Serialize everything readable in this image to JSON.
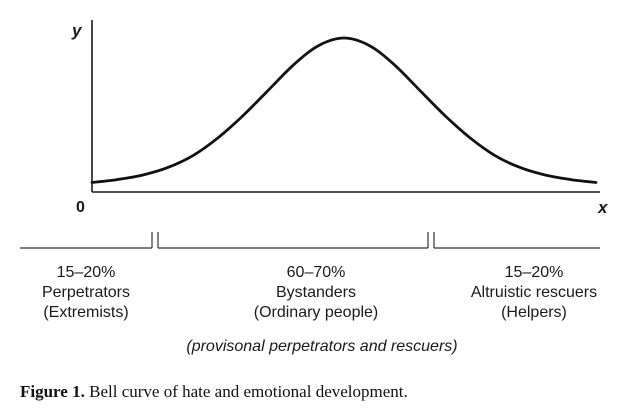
{
  "chart_data": {
    "type": "line",
    "xlabel": "x",
    "ylabel": "y",
    "origin_label": "0",
    "series": [
      {
        "x": [
          0,
          0.05,
          0.1,
          0.15,
          0.2,
          0.25,
          0.3,
          0.35,
          0.4,
          0.45,
          0.5,
          0.55,
          0.6,
          0.65,
          0.7,
          0.75,
          0.8,
          0.85,
          0.9,
          0.95,
          1.0
        ],
        "values": [
          0.03,
          0.05,
          0.08,
          0.13,
          0.21,
          0.33,
          0.48,
          0.65,
          0.82,
          0.95,
          1.0,
          0.95,
          0.82,
          0.65,
          0.48,
          0.33,
          0.21,
          0.13,
          0.08,
          0.05,
          0.03
        ]
      }
    ],
    "grid": false,
    "legend": "none",
    "segments": [
      {
        "percent": "15–20%",
        "role": "Perpetrators",
        "desc": "(Extremists)"
      },
      {
        "percent": "60–70%",
        "role": "Bystanders",
        "desc": "(Ordinary people)"
      },
      {
        "percent": "15–20%",
        "role": "Altruistic rescuers",
        "desc": "(Helpers)"
      }
    ],
    "note": "(provisonal perpetrators and rescuers)"
  },
  "caption": {
    "label": "Figure 1.",
    "text": " Bell curve of hate and emotional development."
  }
}
